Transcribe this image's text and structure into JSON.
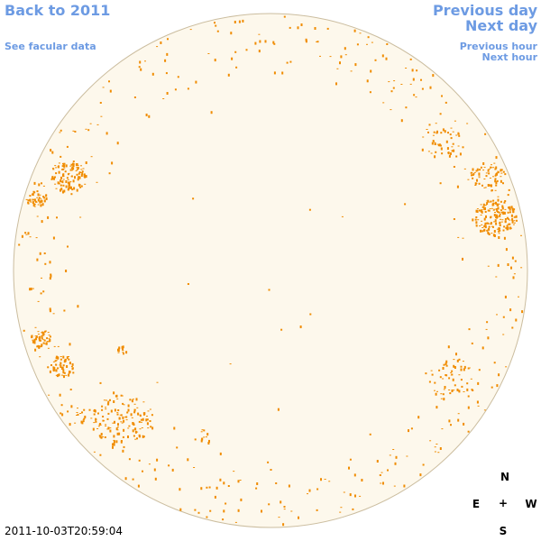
{
  "nav": {
    "back": "Back to 2011",
    "facular": "See facular data",
    "previous_day": "Previous day",
    "next_day": "Next day",
    "previous_hour": "Previous hour",
    "next_hour": "Next hour"
  },
  "timestamp": "2011-10-03T20:59:04",
  "compass": {
    "north": "N",
    "east": "E",
    "center": "+",
    "west": "W",
    "south": "S"
  }
}
